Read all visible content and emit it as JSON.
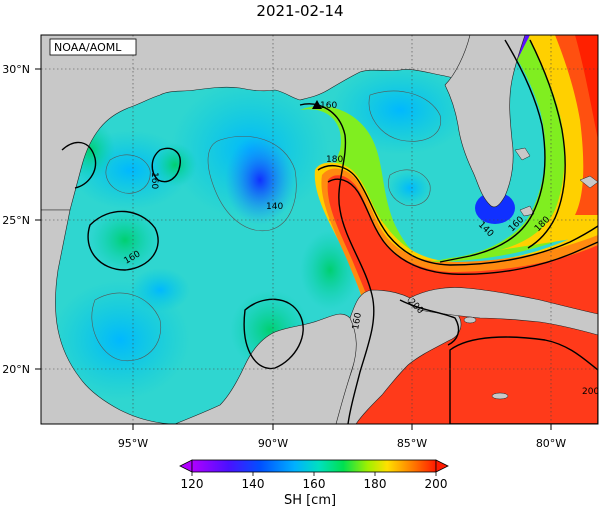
{
  "title": "2021-02-14",
  "credit": "NOAA/AOML",
  "map": {
    "x_ticks": [
      "95°W",
      "90°W",
      "85°W",
      "80°W"
    ],
    "y_ticks": [
      "30°N",
      "25°N",
      "20°N"
    ],
    "contour_labels": [
      "160",
      "160",
      "140",
      "160",
      "180",
      "140",
      "160",
      "180",
      "200",
      "160",
      "200"
    ]
  },
  "colorbar": {
    "tick_labels": [
      "120",
      "140",
      "160",
      "180",
      "200"
    ],
    "title": "SH [cm]",
    "range": [
      120,
      200
    ]
  },
  "colors": {
    "land": "#c8c8c8",
    "scale": [
      "#b000ff",
      "#3a10ff",
      "#0050ff",
      "#00b0ff",
      "#00e0c0",
      "#00e060",
      "#80f000",
      "#ffe000",
      "#ff8000",
      "#ff2000"
    ]
  }
}
